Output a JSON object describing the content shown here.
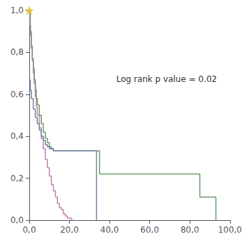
{
  "chart_data": {
    "type": "step",
    "annotation": "Log rank p value = 0.02",
    "xlim": [
      0,
      100
    ],
    "ylim": [
      0,
      1.0
    ],
    "xticks": [
      {
        "value": 0.0,
        "label": "0,0"
      },
      {
        "value": 20.0,
        "label": "20,0"
      },
      {
        "value": 40.0,
        "label": "40,0"
      },
      {
        "value": 60.0,
        "label": "60,0"
      },
      {
        "value": 80.0,
        "label": "80,0"
      },
      {
        "value": 100.0,
        "label": "100,0"
      }
    ],
    "yticks": [
      {
        "value": 0.0,
        "label": "0,0"
      },
      {
        "value": 0.2,
        "label": "0,2"
      },
      {
        "value": 0.4,
        "label": "0,4"
      },
      {
        "value": 0.6,
        "label": "0,6"
      },
      {
        "value": 0.8,
        "label": "0,8"
      },
      {
        "value": 1.0,
        "label": "1,0"
      }
    ],
    "grid": false,
    "series": [
      {
        "color": "#c080b0",
        "x": [
          0,
          0.3,
          0.6,
          1.0,
          1.5,
          2.0,
          2.5,
          3.0,
          3.5,
          4.0,
          5.0,
          6.0,
          7.0,
          8.0,
          9.0,
          10.0,
          11.0,
          12.0,
          13.0,
          14.0,
          15.0,
          16.0,
          17.0,
          18.0,
          19.0,
          20.0,
          21.0,
          22.0
        ],
        "values": [
          1.0,
          0.93,
          0.88,
          0.82,
          0.76,
          0.7,
          0.65,
          0.59,
          0.54,
          0.5,
          0.44,
          0.39,
          0.34,
          0.29,
          0.25,
          0.21,
          0.17,
          0.14,
          0.11,
          0.08,
          0.06,
          0.05,
          0.03,
          0.02,
          0.01,
          0.01,
          0.0,
          0.0
        ]
      },
      {
        "color": "#6a9a6a",
        "x": [
          0,
          0.5,
          1.0,
          1.5,
          2.0,
          2.5,
          3.0,
          3.5,
          4.0,
          5.0,
          6.0,
          7.0,
          8.0,
          9.0,
          10.0,
          11.0,
          12.0,
          13.0,
          14.0,
          15.0,
          20.0,
          22.0,
          33.0,
          35.0,
          40.0,
          45.0,
          55.0,
          60.0,
          70.0,
          75.0,
          80.0,
          85.0,
          90.0,
          92.0,
          93.0
        ],
        "values": [
          1.0,
          0.9,
          0.83,
          0.77,
          0.72,
          0.67,
          0.62,
          0.58,
          0.55,
          0.5,
          0.46,
          0.42,
          0.39,
          0.37,
          0.35,
          0.34,
          0.33,
          0.33,
          0.33,
          0.33,
          0.33,
          0.33,
          0.33,
          0.22,
          0.22,
          0.22,
          0.22,
          0.22,
          0.22,
          0.22,
          0.22,
          0.11,
          0.11,
          0.11,
          0.0
        ]
      },
      {
        "color": "#7080a0",
        "x": [
          0,
          0.5,
          1.0,
          2.0,
          3.0,
          4.0,
          5.0,
          6.0,
          7.0,
          8.0,
          9.0,
          10.0,
          12.0,
          15.0,
          18.0,
          20.0,
          22.0,
          25.0,
          28.0,
          33.0,
          33.5
        ],
        "values": [
          0.67,
          0.62,
          0.58,
          0.53,
          0.49,
          0.46,
          0.43,
          0.4,
          0.38,
          0.36,
          0.35,
          0.34,
          0.33,
          0.33,
          0.33,
          0.33,
          0.33,
          0.33,
          0.33,
          0.33,
          0.0
        ]
      },
      {
        "type": "scatter",
        "marker": "star",
        "color": "#e8c020",
        "x": [
          0.0
        ],
        "values": [
          1.0
        ]
      }
    ]
  }
}
